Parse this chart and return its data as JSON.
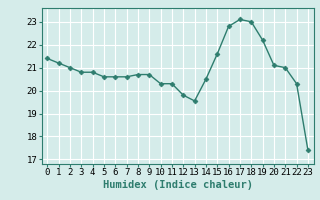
{
  "x": [
    0,
    1,
    2,
    3,
    4,
    5,
    6,
    7,
    8,
    9,
    10,
    11,
    12,
    13,
    14,
    15,
    16,
    17,
    18,
    19,
    20,
    21,
    22,
    23
  ],
  "y": [
    21.4,
    21.2,
    21.0,
    20.8,
    20.8,
    20.6,
    20.6,
    20.6,
    20.7,
    20.7,
    20.3,
    20.3,
    19.8,
    19.55,
    20.5,
    21.6,
    22.8,
    23.1,
    23.0,
    22.2,
    21.1,
    21.0,
    20.3,
    17.4
  ],
  "line_color": "#2e7d6e",
  "marker": "D",
  "marker_size": 2.5,
  "bg_color": "#d5ecea",
  "grid_color": "#ffffff",
  "xlabel": "Humidex (Indice chaleur)",
  "ylim": [
    16.8,
    23.6
  ],
  "xlim": [
    -0.5,
    23.5
  ],
  "yticks": [
    17,
    18,
    19,
    20,
    21,
    22,
    23
  ],
  "xticks": [
    0,
    1,
    2,
    3,
    4,
    5,
    6,
    7,
    8,
    9,
    10,
    11,
    12,
    13,
    14,
    15,
    16,
    17,
    18,
    19,
    20,
    21,
    22,
    23
  ],
  "tick_label_size": 6.5,
  "xlabel_size": 7.5
}
